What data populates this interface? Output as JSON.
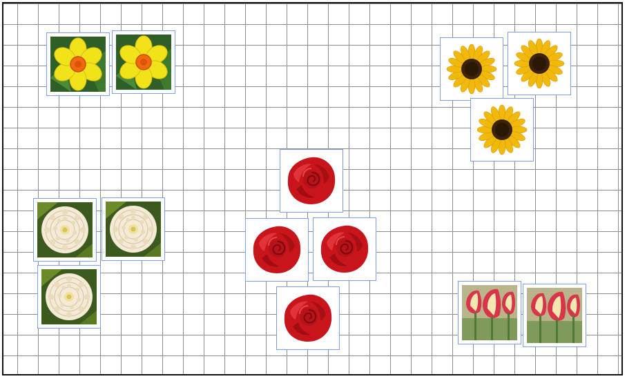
{
  "board": {
    "grid": true,
    "card_border_color": "#7f9ee9",
    "grid_color": "#8c8c8c"
  },
  "cards": [
    {
      "flower": "daffodil"
    },
    {
      "flower": "daffodil"
    },
    {
      "flower": "sunflower"
    },
    {
      "flower": "sunflower"
    },
    {
      "flower": "sunflower"
    },
    {
      "flower": "rose"
    },
    {
      "flower": "rose"
    },
    {
      "flower": "rose"
    },
    {
      "flower": "rose"
    },
    {
      "flower": "dahlia"
    },
    {
      "flower": "dahlia"
    },
    {
      "flower": "dahlia"
    },
    {
      "flower": "tulip"
    },
    {
      "flower": "tulip"
    }
  ],
  "colors": {
    "daffodil_petal": "#f2e21a",
    "daffodil_trumpet": "#f06a0a",
    "sunflower_petal": "#f2b90d",
    "sunflower_center": "#3b2208",
    "rose": "#c8151b",
    "dahlia": "#f4ead7",
    "tulip_red": "#d8344a",
    "tulip_cream": "#f3e6b0",
    "leaf": "#3f7a2c"
  }
}
